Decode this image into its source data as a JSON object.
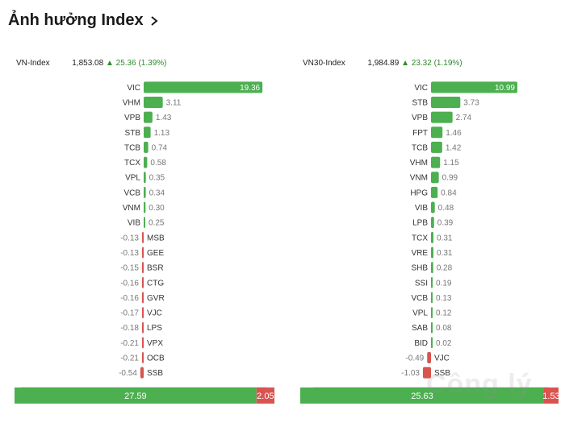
{
  "page": {
    "title": "Ảnh hưởng Index"
  },
  "colors": {
    "positive": "#4caf50",
    "negative": "#d9534f",
    "up_text": "#2e8b2e"
  },
  "chart_data": [
    {
      "type": "bar",
      "orientation": "horizontal",
      "index_name": "VN-Index",
      "index_value": "1,853.08",
      "change_arrow": "▲",
      "change": "25.36 (1.39%)",
      "categories": [
        "VIC",
        "VHM",
        "VPB",
        "STB",
        "TCB",
        "TCX",
        "VPL",
        "VCB",
        "VNM",
        "VIB",
        "MSB",
        "GEE",
        "BSR",
        "CTG",
        "GVR",
        "VJC",
        "LPS",
        "VPX",
        "OCB",
        "SSB"
      ],
      "values": [
        19.36,
        3.11,
        1.43,
        1.13,
        0.74,
        0.58,
        0.35,
        0.34,
        0.3,
        0.25,
        -0.13,
        -0.13,
        -0.15,
        -0.16,
        -0.16,
        -0.17,
        -0.18,
        -0.21,
        -0.21,
        -0.54
      ],
      "value_labels": [
        "19.36",
        "3.11",
        "1.43",
        "1.13",
        "0.74",
        "0.58",
        "0.35",
        "0.34",
        "0.30",
        "0.25",
        "-0.13",
        "-0.13",
        "-0.15",
        "-0.16",
        "-0.16",
        "-0.17",
        "-0.18",
        "-0.21",
        "-0.21",
        "-0.54"
      ],
      "xlim": [
        -20,
        20
      ],
      "xticks": [
        -20,
        -15,
        -10,
        -5,
        0,
        5,
        10,
        15,
        20
      ],
      "xtick_labels": [
        "−20",
        "−15",
        "−10",
        "−5",
        "0",
        "5",
        "10",
        "15",
        "20"
      ],
      "summary": {
        "positive": 27.59,
        "negative": 2.05,
        "positive_label": "27.59",
        "negative_label": "2.05"
      }
    },
    {
      "type": "bar",
      "orientation": "horizontal",
      "index_name": "VN30-Index",
      "index_value": "1,984.89",
      "change_arrow": "▲",
      "change": "23.32 (1.19%)",
      "categories": [
        "VIC",
        "STB",
        "VPB",
        "FPT",
        "TCB",
        "VHM",
        "VNM",
        "HPG",
        "VIB",
        "LPB",
        "TCX",
        "VRE",
        "SHB",
        "SSI",
        "VCB",
        "VPL",
        "SAB",
        "BID",
        "VJC",
        "SSB"
      ],
      "values": [
        10.99,
        3.73,
        2.74,
        1.46,
        1.42,
        1.15,
        0.99,
        0.84,
        0.48,
        0.39,
        0.31,
        0.31,
        0.28,
        0.19,
        0.13,
        0.12,
        0.08,
        0.02,
        -0.49,
        -1.03
      ],
      "value_labels": [
        "10.99",
        "3.73",
        "2.74",
        "1.46",
        "1.42",
        "1.15",
        "0.99",
        "0.84",
        "0.48",
        "0.39",
        "0.31",
        "0.31",
        "0.28",
        "0.19",
        "0.13",
        "0.12",
        "0.08",
        "0.02",
        "-0.49",
        "-1.03"
      ],
      "xlim": [
        -15,
        15
      ],
      "xticks": [
        -15,
        -10,
        -5,
        0,
        5,
        10,
        15
      ],
      "xtick_labels": [
        "−15",
        "−10",
        "−5",
        "0",
        "5",
        "10",
        "15"
      ],
      "summary": {
        "positive": 25.63,
        "negative": 1.53,
        "positive_label": "25.63",
        "negative_label": "1.53"
      }
    }
  ]
}
